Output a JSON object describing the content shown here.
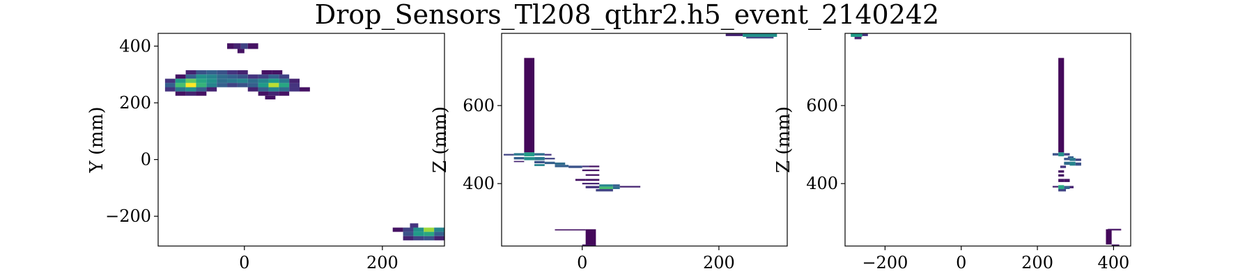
{
  "title": "Drop_Sensors_Tl208_qthr2.h5_event_2140242",
  "colormap": [
    "#440154",
    "#46327e",
    "#365c8d",
    "#277f8e",
    "#1fa187",
    "#4ac16d",
    "#a0da39",
    "#fde725"
  ],
  "chart_data": [
    {
      "type": "heatmap",
      "xlabel": "",
      "ylabel": "Y (mm)",
      "xlim": [
        -125,
        290
      ],
      "ylim": [
        -305,
        445
      ],
      "xticks": [
        0,
        200
      ],
      "yticks": [
        -200,
        0,
        200,
        400
      ],
      "cells": [
        {
          "x0": -25,
          "x1": -15,
          "y0": 390,
          "y1": 410,
          "v": 0.05
        },
        {
          "x0": -15,
          "x1": -5,
          "y0": 390,
          "y1": 410,
          "v": 0.1
        },
        {
          "x0": -5,
          "x1": 5,
          "y0": 390,
          "y1": 410,
          "v": 0.2
        },
        {
          "x0": 5,
          "x1": 20,
          "y0": 390,
          "y1": 410,
          "v": 0.05
        },
        {
          "x0": -10,
          "x1": 0,
          "y0": 375,
          "y1": 390,
          "v": 0.05
        },
        {
          "x0": -85,
          "x1": -70,
          "y0": 300,
          "y1": 315,
          "v": 0.1
        },
        {
          "x0": -70,
          "x1": -55,
          "y0": 300,
          "y1": 315,
          "v": 0.25
        },
        {
          "x0": -55,
          "x1": -40,
          "y0": 300,
          "y1": 315,
          "v": 0.3
        },
        {
          "x0": -40,
          "x1": -25,
          "y0": 300,
          "y1": 315,
          "v": 0.25
        },
        {
          "x0": -25,
          "x1": -10,
          "y0": 300,
          "y1": 315,
          "v": 0.15
        },
        {
          "x0": -10,
          "x1": 5,
          "y0": 300,
          "y1": 315,
          "v": 0.1
        },
        {
          "x0": 25,
          "x1": 40,
          "y0": 300,
          "y1": 315,
          "v": 0.05
        },
        {
          "x0": 40,
          "x1": 55,
          "y0": 300,
          "y1": 315,
          "v": 0.05
        },
        {
          "x0": -100,
          "x1": -85,
          "y0": 285,
          "y1": 300,
          "v": 0.05
        },
        {
          "x0": -85,
          "x1": -70,
          "y0": 285,
          "y1": 300,
          "v": 0.3
        },
        {
          "x0": -70,
          "x1": -55,
          "y0": 285,
          "y1": 300,
          "v": 0.5
        },
        {
          "x0": -55,
          "x1": -40,
          "y0": 285,
          "y1": 300,
          "v": 0.45
        },
        {
          "x0": -40,
          "x1": -25,
          "y0": 285,
          "y1": 300,
          "v": 0.35
        },
        {
          "x0": -25,
          "x1": -10,
          "y0": 285,
          "y1": 300,
          "v": 0.3
        },
        {
          "x0": -10,
          "x1": 5,
          "y0": 285,
          "y1": 300,
          "v": 0.25
        },
        {
          "x0": 5,
          "x1": 20,
          "y0": 285,
          "y1": 300,
          "v": 0.15
        },
        {
          "x0": 20,
          "x1": 35,
          "y0": 285,
          "y1": 300,
          "v": 0.2
        },
        {
          "x0": 35,
          "x1": 50,
          "y0": 285,
          "y1": 300,
          "v": 0.3
        },
        {
          "x0": 50,
          "x1": 65,
          "y0": 285,
          "y1": 300,
          "v": 0.2
        },
        {
          "x0": -115,
          "x1": -100,
          "y0": 270,
          "y1": 285,
          "v": 0.15
        },
        {
          "x0": -100,
          "x1": -85,
          "y0": 270,
          "y1": 285,
          "v": 0.55
        },
        {
          "x0": -85,
          "x1": -70,
          "y0": 270,
          "y1": 285,
          "v": 0.75
        },
        {
          "x0": -70,
          "x1": -55,
          "y0": 270,
          "y1": 285,
          "v": 0.6
        },
        {
          "x0": -55,
          "x1": -40,
          "y0": 270,
          "y1": 285,
          "v": 0.5
        },
        {
          "x0": -40,
          "x1": -25,
          "y0": 270,
          "y1": 285,
          "v": 0.35
        },
        {
          "x0": -25,
          "x1": -10,
          "y0": 270,
          "y1": 285,
          "v": 0.4
        },
        {
          "x0": -10,
          "x1": 5,
          "y0": 270,
          "y1": 285,
          "v": 0.45
        },
        {
          "x0": 5,
          "x1": 20,
          "y0": 270,
          "y1": 285,
          "v": 0.35
        },
        {
          "x0": 20,
          "x1": 35,
          "y0": 270,
          "y1": 285,
          "v": 0.45
        },
        {
          "x0": 35,
          "x1": 50,
          "y0": 270,
          "y1": 285,
          "v": 0.55
        },
        {
          "x0": 50,
          "x1": 65,
          "y0": 270,
          "y1": 285,
          "v": 0.4
        },
        {
          "x0": 65,
          "x1": 80,
          "y0": 270,
          "y1": 285,
          "v": 0.1
        },
        {
          "x0": -115,
          "x1": -100,
          "y0": 255,
          "y1": 270,
          "v": 0.3
        },
        {
          "x0": -100,
          "x1": -85,
          "y0": 255,
          "y1": 270,
          "v": 0.7
        },
        {
          "x0": -85,
          "x1": -70,
          "y0": 255,
          "y1": 270,
          "v": 1.0
        },
        {
          "x0": -70,
          "x1": -55,
          "y0": 255,
          "y1": 270,
          "v": 0.65
        },
        {
          "x0": -55,
          "x1": -40,
          "y0": 255,
          "y1": 270,
          "v": 0.45
        },
        {
          "x0": -40,
          "x1": -25,
          "y0": 255,
          "y1": 270,
          "v": 0.3
        },
        {
          "x0": -25,
          "x1": -10,
          "y0": 255,
          "y1": 270,
          "v": 0.2
        },
        {
          "x0": -10,
          "x1": 5,
          "y0": 255,
          "y1": 270,
          "v": 0.25
        },
        {
          "x0": 5,
          "x1": 20,
          "y0": 255,
          "y1": 270,
          "v": 0.3
        },
        {
          "x0": 20,
          "x1": 35,
          "y0": 255,
          "y1": 270,
          "v": 0.55
        },
        {
          "x0": 35,
          "x1": 50,
          "y0": 255,
          "y1": 270,
          "v": 0.9
        },
        {
          "x0": 50,
          "x1": 65,
          "y0": 255,
          "y1": 270,
          "v": 0.6
        },
        {
          "x0": 65,
          "x1": 80,
          "y0": 255,
          "y1": 270,
          "v": 0.15
        },
        {
          "x0": -115,
          "x1": -100,
          "y0": 240,
          "y1": 255,
          "v": 0.15
        },
        {
          "x0": -100,
          "x1": -85,
          "y0": 240,
          "y1": 255,
          "v": 0.4
        },
        {
          "x0": -85,
          "x1": -70,
          "y0": 240,
          "y1": 255,
          "v": 0.5
        },
        {
          "x0": -70,
          "x1": -55,
          "y0": 240,
          "y1": 255,
          "v": 0.3
        },
        {
          "x0": -55,
          "x1": -40,
          "y0": 240,
          "y1": 255,
          "v": 0.1
        },
        {
          "x0": 5,
          "x1": 20,
          "y0": 240,
          "y1": 255,
          "v": 0.1
        },
        {
          "x0": 20,
          "x1": 35,
          "y0": 240,
          "y1": 255,
          "v": 0.3
        },
        {
          "x0": 35,
          "x1": 50,
          "y0": 240,
          "y1": 255,
          "v": 0.45
        },
        {
          "x0": 50,
          "x1": 65,
          "y0": 240,
          "y1": 255,
          "v": 0.35
        },
        {
          "x0": 65,
          "x1": 80,
          "y0": 240,
          "y1": 255,
          "v": 0.15
        },
        {
          "x0": 80,
          "x1": 95,
          "y0": 240,
          "y1": 255,
          "v": 0.05
        },
        {
          "x0": -100,
          "x1": -85,
          "y0": 225,
          "y1": 240,
          "v": 0.05
        },
        {
          "x0": -85,
          "x1": -70,
          "y0": 225,
          "y1": 240,
          "v": 0.1
        },
        {
          "x0": -70,
          "x1": -55,
          "y0": 225,
          "y1": 240,
          "v": 0.05
        },
        {
          "x0": 20,
          "x1": 35,
          "y0": 225,
          "y1": 240,
          "v": 0.05
        },
        {
          "x0": 35,
          "x1": 50,
          "y0": 225,
          "y1": 240,
          "v": 0.1
        },
        {
          "x0": 50,
          "x1": 65,
          "y0": 225,
          "y1": 240,
          "v": 0.05
        },
        {
          "x0": 30,
          "x1": 45,
          "y0": 212,
          "y1": 225,
          "v": 0.05
        },
        {
          "x0": 240,
          "x1": 252,
          "y0": -240,
          "y1": -225,
          "v": 0.15
        },
        {
          "x0": 215,
          "x1": 230,
          "y0": -255,
          "y1": -240,
          "v": 0.05
        },
        {
          "x0": 230,
          "x1": 245,
          "y0": -255,
          "y1": -240,
          "v": 0.2
        },
        {
          "x0": 245,
          "x1": 260,
          "y0": -255,
          "y1": -240,
          "v": 0.5
        },
        {
          "x0": 260,
          "x1": 275,
          "y0": -255,
          "y1": -240,
          "v": 0.85
        },
        {
          "x0": 275,
          "x1": 290,
          "y0": -255,
          "y1": -240,
          "v": 0.45
        },
        {
          "x0": 230,
          "x1": 245,
          "y0": -270,
          "y1": -255,
          "v": 0.25
        },
        {
          "x0": 245,
          "x1": 260,
          "y0": -270,
          "y1": -255,
          "v": 0.55
        },
        {
          "x0": 260,
          "x1": 275,
          "y0": -270,
          "y1": -255,
          "v": 0.6
        },
        {
          "x0": 275,
          "x1": 290,
          "y0": -270,
          "y1": -255,
          "v": 0.3
        },
        {
          "x0": 230,
          "x1": 245,
          "y0": -285,
          "y1": -270,
          "v": 0.1
        },
        {
          "x0": 245,
          "x1": 260,
          "y0": -285,
          "y1": -270,
          "v": 0.2
        },
        {
          "x0": 260,
          "x1": 275,
          "y0": -285,
          "y1": -270,
          "v": 0.25
        },
        {
          "x0": 275,
          "x1": 290,
          "y0": -285,
          "y1": -270,
          "v": 0.1
        }
      ]
    },
    {
      "type": "heatmap",
      "xlabel": "",
      "ylabel": "Z (mm)",
      "xlim": [
        -118,
        300
      ],
      "ylim": [
        240,
        785
      ],
      "xticks": [
        0,
        200
      ],
      "yticks": [
        400,
        600
      ],
      "cells": [
        {
          "x0": -85,
          "x1": -70,
          "y0": 480,
          "y1": 722,
          "v": 0.02
        },
        {
          "x0": -115,
          "x1": -100,
          "y0": 472,
          "y1": 476,
          "v": 0.2
        },
        {
          "x0": -100,
          "x1": -85,
          "y0": 472,
          "y1": 478,
          "v": 0.4
        },
        {
          "x0": -85,
          "x1": -70,
          "y0": 470,
          "y1": 480,
          "v": 0.55
        },
        {
          "x0": -70,
          "x1": -55,
          "y0": 472,
          "y1": 478,
          "v": 0.35
        },
        {
          "x0": -55,
          "x1": -45,
          "y0": 472,
          "y1": 476,
          "v": 0.15
        },
        {
          "x0": -100,
          "x1": -85,
          "y0": 462,
          "y1": 468,
          "v": 0.3
        },
        {
          "x0": -85,
          "x1": -70,
          "y0": 460,
          "y1": 468,
          "v": 0.5
        },
        {
          "x0": -70,
          "x1": -55,
          "y0": 460,
          "y1": 468,
          "v": 0.4
        },
        {
          "x0": -55,
          "x1": -40,
          "y0": 462,
          "y1": 466,
          "v": 0.2
        },
        {
          "x0": -100,
          "x1": -85,
          "y0": 455,
          "y1": 458,
          "v": 0.1
        },
        {
          "x0": -70,
          "x1": -55,
          "y0": 452,
          "y1": 458,
          "v": 0.25
        },
        {
          "x0": -55,
          "x1": -40,
          "y0": 450,
          "y1": 456,
          "v": 0.3
        },
        {
          "x0": -40,
          "x1": -25,
          "y0": 448,
          "y1": 454,
          "v": 0.35
        },
        {
          "x0": -70,
          "x1": -55,
          "y0": 445,
          "y1": 450,
          "v": 0.45
        },
        {
          "x0": -40,
          "x1": -20,
          "y0": 442,
          "y1": 448,
          "v": 0.3
        },
        {
          "x0": -20,
          "x1": 0,
          "y0": 440,
          "y1": 446,
          "v": 0.25
        },
        {
          "x0": 0,
          "x1": 10,
          "y0": 442,
          "y1": 446,
          "v": 0.15
        },
        {
          "x0": 10,
          "x1": 25,
          "y0": 442,
          "y1": 446,
          "v": 0.05
        },
        {
          "x0": 0,
          "x1": 25,
          "y0": 432,
          "y1": 436,
          "v": 0.05
        },
        {
          "x0": 5,
          "x1": 25,
          "y0": 420,
          "y1": 424,
          "v": 0.05
        },
        {
          "x0": -10,
          "x1": 5,
          "y0": 407,
          "y1": 412,
          "v": 0.05
        },
        {
          "x0": 5,
          "x1": 25,
          "y0": 407,
          "y1": 412,
          "v": 0.05
        },
        {
          "x0": 0,
          "x1": 25,
          "y0": 398,
          "y1": 402,
          "v": 0.1
        },
        {
          "x0": 25,
          "x1": 45,
          "y0": 392,
          "y1": 398,
          "v": 0.45
        },
        {
          "x0": 45,
          "x1": 55,
          "y0": 392,
          "y1": 398,
          "v": 0.3
        },
        {
          "x0": 55,
          "x1": 85,
          "y0": 390,
          "y1": 394,
          "v": 0.1
        },
        {
          "x0": 5,
          "x1": 25,
          "y0": 388,
          "y1": 394,
          "v": 0.15
        },
        {
          "x0": 25,
          "x1": 45,
          "y0": 386,
          "y1": 392,
          "v": 0.7
        },
        {
          "x0": 45,
          "x1": 55,
          "y0": 386,
          "y1": 392,
          "v": 0.35
        },
        {
          "x0": 20,
          "x1": 45,
          "y0": 380,
          "y1": 386,
          "v": 0.2
        },
        {
          "x0": 5,
          "x1": 20,
          "y0": 240,
          "y1": 283,
          "v": 0.02
        },
        {
          "x0": -40,
          "x1": 5,
          "y0": 280,
          "y1": 283,
          "v": 0.05
        },
        {
          "x0": 0,
          "x1": 20,
          "y0": 240,
          "y1": 244,
          "v": 0.05
        },
        {
          "x0": 210,
          "x1": 235,
          "y0": 778,
          "y1": 784,
          "v": 0.1
        },
        {
          "x0": 235,
          "x1": 285,
          "y0": 776,
          "y1": 785,
          "v": 0.5
        },
        {
          "x0": 240,
          "x1": 280,
          "y0": 772,
          "y1": 776,
          "v": 0.2
        }
      ]
    },
    {
      "type": "heatmap",
      "xlabel": "",
      "ylabel": "Z (mm)",
      "xlim": [
        -305,
        445
      ],
      "ylim": [
        240,
        785
      ],
      "xticks": [
        -200,
        0,
        200,
        400
      ],
      "yticks": [
        400,
        600
      ],
      "cells": [
        {
          "x0": 255,
          "x1": 270,
          "y0": 480,
          "y1": 722,
          "v": 0.02
        },
        {
          "x0": -290,
          "x1": -260,
          "y0": 776,
          "y1": 785,
          "v": 0.55
        },
        {
          "x0": -260,
          "x1": -245,
          "y0": 778,
          "y1": 784,
          "v": 0.15
        },
        {
          "x0": -280,
          "x1": -262,
          "y0": 770,
          "y1": 776,
          "v": 0.1
        },
        {
          "x0": 255,
          "x1": 270,
          "y0": 470,
          "y1": 480,
          "v": 0.5
        },
        {
          "x0": 240,
          "x1": 255,
          "y0": 472,
          "y1": 478,
          "v": 0.25
        },
        {
          "x0": 270,
          "x1": 285,
          "y0": 472,
          "y1": 478,
          "v": 0.2
        },
        {
          "x0": 280,
          "x1": 295,
          "y0": 466,
          "y1": 470,
          "v": 0.3
        },
        {
          "x0": 270,
          "x1": 285,
          "y0": 460,
          "y1": 466,
          "v": 0.25
        },
        {
          "x0": 285,
          "x1": 300,
          "y0": 458,
          "y1": 466,
          "v": 0.4
        },
        {
          "x0": 300,
          "x1": 315,
          "y0": 458,
          "y1": 464,
          "v": 0.2
        },
        {
          "x0": 270,
          "x1": 285,
          "y0": 448,
          "y1": 456,
          "v": 0.35
        },
        {
          "x0": 285,
          "x1": 300,
          "y0": 446,
          "y1": 456,
          "v": 0.45
        },
        {
          "x0": 300,
          "x1": 315,
          "y0": 446,
          "y1": 454,
          "v": 0.25
        },
        {
          "x0": 260,
          "x1": 275,
          "y0": 440,
          "y1": 446,
          "v": 0.15
        },
        {
          "x0": 255,
          "x1": 270,
          "y0": 428,
          "y1": 434,
          "v": 0.05
        },
        {
          "x0": 255,
          "x1": 270,
          "y0": 418,
          "y1": 424,
          "v": 0.05
        },
        {
          "x0": 255,
          "x1": 270,
          "y0": 404,
          "y1": 412,
          "v": 0.05
        },
        {
          "x0": 270,
          "x1": 285,
          "y0": 404,
          "y1": 412,
          "v": 0.05
        },
        {
          "x0": 240,
          "x1": 255,
          "y0": 390,
          "y1": 394,
          "v": 0.1
        },
        {
          "x0": 255,
          "x1": 270,
          "y0": 386,
          "y1": 396,
          "v": 0.6
        },
        {
          "x0": 270,
          "x1": 285,
          "y0": 386,
          "y1": 394,
          "v": 0.3
        },
        {
          "x0": 285,
          "x1": 295,
          "y0": 388,
          "y1": 394,
          "v": 0.1
        },
        {
          "x0": 255,
          "x1": 275,
          "y0": 380,
          "y1": 386,
          "v": 0.2
        },
        {
          "x0": 380,
          "x1": 395,
          "y0": 244,
          "y1": 283,
          "v": 0.02
        },
        {
          "x0": 385,
          "x1": 420,
          "y0": 280,
          "y1": 284,
          "v": 0.05
        },
        {
          "x0": 395,
          "x1": 415,
          "y0": 240,
          "y1": 244,
          "v": 0.05
        }
      ]
    }
  ]
}
